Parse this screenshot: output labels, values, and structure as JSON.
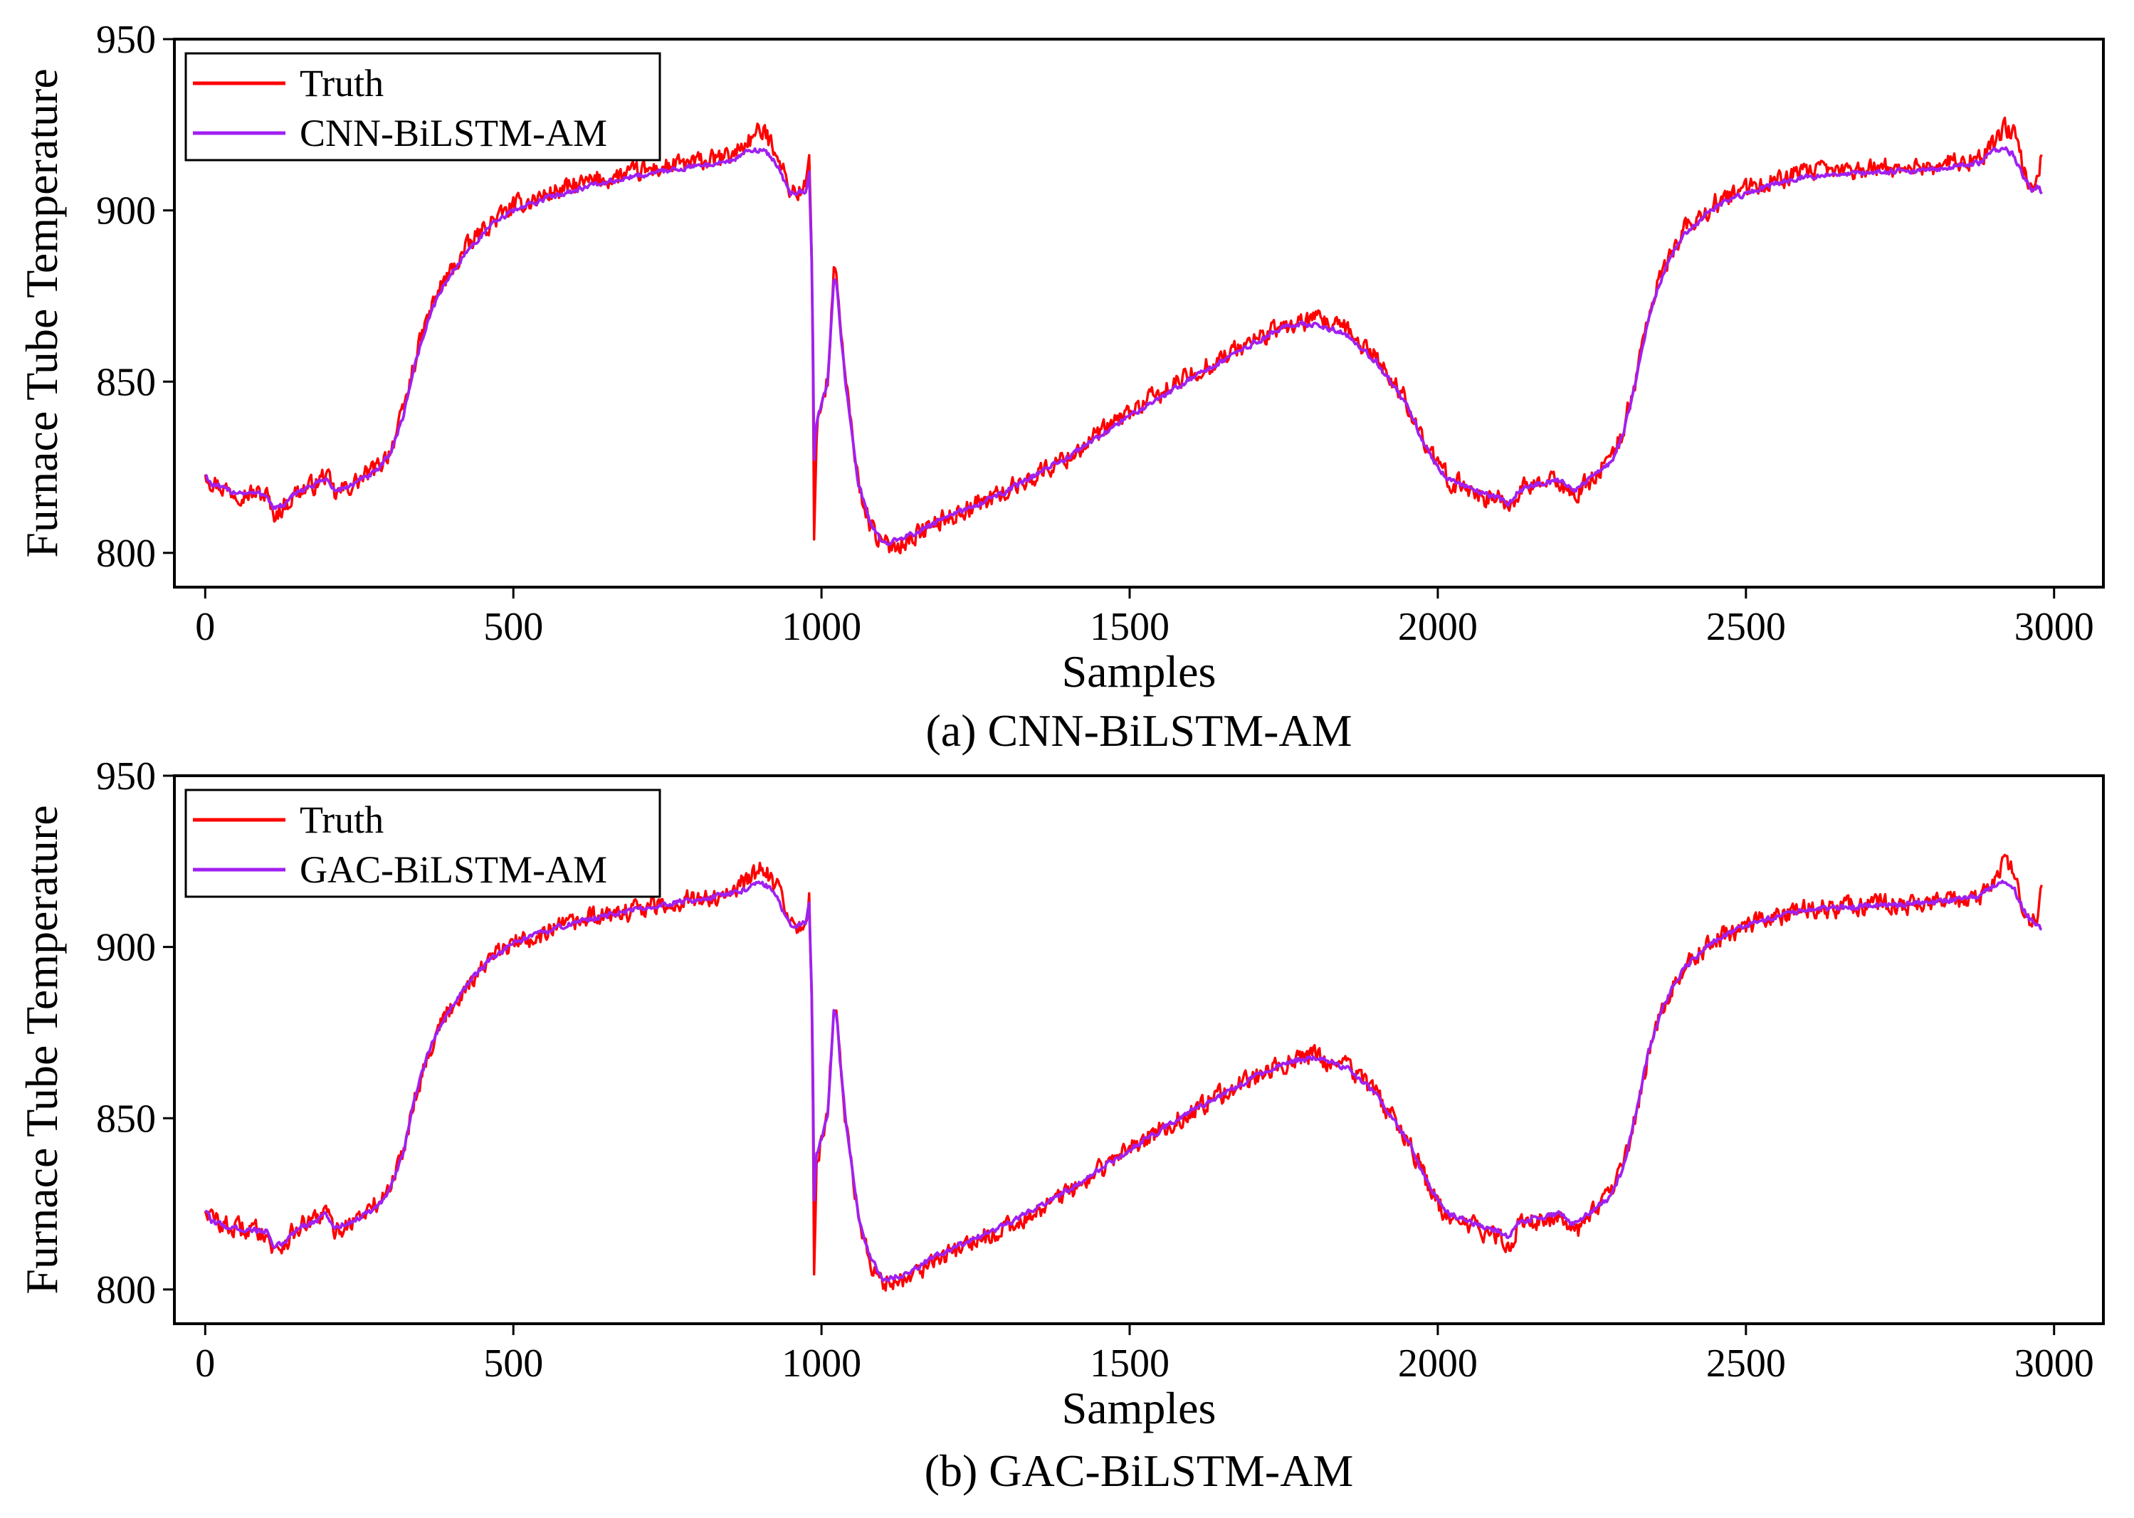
{
  "chart_data": [
    {
      "type": "line",
      "caption": "(a) CNN-BiLSTM-AM",
      "xlabel": "Samples",
      "ylabel": "Furnace Tube Temperature",
      "xlim": [
        -50,
        3080
      ],
      "ylim": [
        790,
        950
      ],
      "xticks": [
        0,
        500,
        1000,
        1500,
        2000,
        2500,
        3000
      ],
      "yticks": [
        800,
        850,
        900,
        950
      ],
      "legend": {
        "position": "top-left",
        "entries": [
          "Truth",
          "CNN-BiLSTM-AM"
        ]
      },
      "series": [
        {
          "name": "Truth",
          "color": "#ff0000",
          "noise": 2.6,
          "x": [
            0,
            10,
            40,
            100,
            110,
            130,
            150,
            180,
            195,
            210,
            240,
            280,
            300,
            320,
            340,
            360,
            380,
            420,
            460,
            500,
            560,
            620,
            700,
            760,
            800,
            840,
            860,
            880,
            900,
            910,
            930,
            940,
            950,
            960,
            975,
            980,
            985,
            988,
            992,
            1000,
            1010,
            1020,
            1025,
            1030,
            1040,
            1050,
            1060,
            1080,
            1100,
            1130,
            1200,
            1300,
            1400,
            1500,
            1600,
            1700,
            1750,
            1800,
            1850,
            1900,
            1950,
            1980,
            2000,
            2020,
            2050,
            2080,
            2100,
            2115,
            2130,
            2160,
            2200,
            2220,
            2250,
            2280,
            2300,
            2320,
            2340,
            2360,
            2380,
            2400,
            2450,
            2500,
            2550,
            2600,
            2700,
            2800,
            2880,
            2900,
            2920,
            2935,
            2950,
            2965,
            2975,
            2980
          ],
          "y": [
            824,
            821,
            818,
            817,
            811,
            814,
            818,
            820,
            823,
            817,
            820,
            825,
            830,
            840,
            856,
            868,
            877,
            888,
            896,
            901,
            905,
            908,
            911,
            913,
            914,
            915,
            917,
            920,
            923,
            922,
            917,
            910,
            906,
            905,
            907,
            915,
            880,
            805,
            836,
            844,
            850,
            882,
            881,
            868,
            848,
            835,
            820,
            808,
            802,
            803,
            810,
            818,
            828,
            841,
            852,
            862,
            866,
            868,
            865,
            857,
            844,
            832,
            825,
            821,
            819,
            816,
            816,
            813,
            818,
            820,
            821,
            816,
            822,
            827,
            835,
            850,
            868,
            880,
            888,
            894,
            902,
            906,
            909,
            911,
            912,
            913,
            915,
            919,
            924,
            922,
            912,
            907,
            911,
            916
          ]
        },
        {
          "name": "CNN-BiLSTM-AM",
          "color": "#a020f0",
          "noise": 0.7,
          "x": [
            0,
            10,
            40,
            100,
            110,
            130,
            150,
            180,
            195,
            210,
            240,
            280,
            300,
            320,
            340,
            360,
            380,
            420,
            460,
            500,
            560,
            620,
            700,
            760,
            800,
            840,
            860,
            880,
            900,
            910,
            930,
            940,
            950,
            960,
            975,
            980,
            985,
            988,
            992,
            1000,
            1010,
            1020,
            1025,
            1030,
            1040,
            1050,
            1060,
            1080,
            1100,
            1130,
            1200,
            1300,
            1400,
            1500,
            1600,
            1700,
            1750,
            1800,
            1850,
            1900,
            1950,
            1980,
            2000,
            2020,
            2050,
            2080,
            2100,
            2115,
            2130,
            2160,
            2200,
            2220,
            2250,
            2280,
            2300,
            2320,
            2340,
            2360,
            2380,
            2400,
            2450,
            2500,
            2550,
            2600,
            2700,
            2800,
            2880,
            2900,
            2920,
            2935,
            2950,
            2965,
            2975,
            2980
          ],
          "y": [
            823,
            820,
            818,
            817,
            813,
            814,
            818,
            820,
            822,
            818,
            820,
            824,
            829,
            839,
            855,
            867,
            876,
            887,
            895,
            900,
            904,
            907,
            910,
            912,
            913,
            914,
            915,
            917,
            918,
            917,
            913,
            908,
            905,
            905,
            906,
            912,
            880,
            828,
            838,
            843,
            850,
            880,
            879,
            866,
            848,
            835,
            820,
            808,
            803,
            804,
            810,
            818,
            828,
            840,
            851,
            861,
            866,
            867,
            864,
            856,
            843,
            831,
            825,
            821,
            819,
            817,
            816,
            814,
            818,
            820,
            821,
            818,
            822,
            826,
            834,
            849,
            867,
            879,
            887,
            893,
            901,
            905,
            908,
            910,
            911,
            912,
            914,
            917,
            918,
            916,
            910,
            906,
            907,
            905
          ]
        }
      ]
    },
    {
      "type": "line",
      "caption": "(b) GAC-BiLSTM-AM",
      "xlabel": "Samples",
      "ylabel": "Furnace Tube Temperature",
      "xlim": [
        -50,
        3080
      ],
      "ylim": [
        790,
        950
      ],
      "xticks": [
        0,
        500,
        1000,
        1500,
        2000,
        2500,
        3000
      ],
      "yticks": [
        800,
        850,
        900,
        950
      ],
      "legend": {
        "position": "top-left",
        "entries": [
          "Truth",
          "GAC-BiLSTM-AM"
        ]
      },
      "series": [
        {
          "name": "Truth",
          "color": "#ff0000",
          "noise": 2.6,
          "x": [
            0,
            10,
            40,
            100,
            110,
            130,
            150,
            180,
            195,
            210,
            240,
            280,
            300,
            320,
            340,
            360,
            380,
            420,
            460,
            500,
            560,
            620,
            700,
            760,
            800,
            840,
            860,
            880,
            900,
            910,
            930,
            940,
            950,
            960,
            975,
            980,
            985,
            988,
            992,
            1000,
            1010,
            1020,
            1025,
            1030,
            1040,
            1050,
            1060,
            1080,
            1100,
            1130,
            1200,
            1300,
            1400,
            1500,
            1600,
            1700,
            1750,
            1800,
            1850,
            1900,
            1950,
            1980,
            2000,
            2020,
            2050,
            2080,
            2100,
            2115,
            2130,
            2160,
            2200,
            2220,
            2250,
            2280,
            2300,
            2320,
            2340,
            2360,
            2380,
            2400,
            2450,
            2500,
            2550,
            2600,
            2700,
            2800,
            2880,
            2900,
            2920,
            2935,
            2950,
            2965,
            2975,
            2980
          ],
          "y": [
            824,
            821,
            818,
            817,
            811,
            814,
            818,
            820,
            823,
            817,
            820,
            825,
            830,
            840,
            856,
            868,
            877,
            888,
            896,
            901,
            905,
            908,
            911,
            913,
            914,
            915,
            917,
            920,
            923,
            922,
            917,
            910,
            906,
            905,
            907,
            915,
            880,
            805,
            836,
            844,
            850,
            882,
            881,
            868,
            848,
            835,
            820,
            808,
            802,
            803,
            810,
            818,
            828,
            841,
            852,
            862,
            866,
            868,
            865,
            857,
            844,
            832,
            825,
            821,
            819,
            816,
            816,
            813,
            818,
            820,
            821,
            816,
            822,
            827,
            835,
            850,
            868,
            880,
            888,
            894,
            902,
            906,
            909,
            911,
            912,
            913,
            915,
            919,
            924,
            922,
            912,
            907,
            911,
            916
          ]
        },
        {
          "name": "GAC-BiLSTM-AM",
          "color": "#a020f0",
          "noise": 0.7,
          "x": [
            0,
            10,
            40,
            100,
            110,
            130,
            150,
            180,
            195,
            210,
            240,
            280,
            300,
            320,
            340,
            360,
            380,
            420,
            460,
            500,
            560,
            620,
            700,
            760,
            800,
            840,
            860,
            880,
            900,
            910,
            930,
            940,
            950,
            960,
            975,
            980,
            985,
            988,
            992,
            1000,
            1010,
            1020,
            1025,
            1030,
            1040,
            1050,
            1060,
            1080,
            1100,
            1130,
            1200,
            1300,
            1400,
            1500,
            1600,
            1700,
            1750,
            1800,
            1850,
            1900,
            1950,
            1980,
            2000,
            2020,
            2050,
            2080,
            2100,
            2115,
            2130,
            2160,
            2200,
            2220,
            2250,
            2280,
            2300,
            2320,
            2340,
            2360,
            2380,
            2400,
            2450,
            2500,
            2550,
            2600,
            2700,
            2800,
            2880,
            2900,
            2920,
            2935,
            2950,
            2965,
            2975,
            2980
          ],
          "y": [
            823,
            820,
            818,
            817,
            812,
            814,
            818,
            820,
            822,
            818,
            820,
            824,
            829,
            839,
            856,
            868,
            877,
            888,
            896,
            901,
            905,
            908,
            911,
            913,
            914,
            915,
            916,
            917,
            919,
            918,
            914,
            909,
            906,
            906,
            907,
            913,
            880,
            826,
            839,
            844,
            851,
            881,
            880,
            867,
            848,
            836,
            821,
            809,
            803,
            804,
            811,
            819,
            829,
            841,
            852,
            862,
            866,
            868,
            865,
            857,
            844,
            832,
            826,
            822,
            820,
            818,
            817,
            815,
            819,
            821,
            822,
            819,
            823,
            827,
            835,
            850,
            868,
            880,
            888,
            894,
            902,
            906,
            909,
            911,
            912,
            913,
            915,
            918,
            919,
            917,
            911,
            907,
            907,
            905
          ]
        }
      ]
    }
  ]
}
